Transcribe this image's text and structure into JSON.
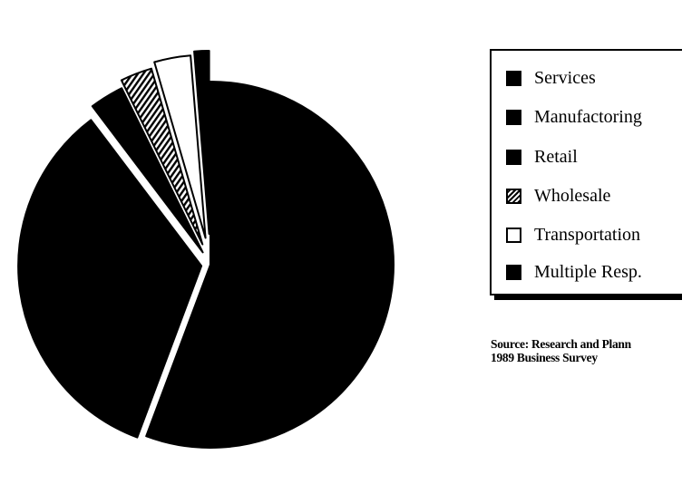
{
  "chart_data": {
    "type": "pie",
    "exploded": true,
    "slices": [
      {
        "label": "Services",
        "value": 55.7,
        "fill": "solid-black"
      },
      {
        "label": "Manufactoring",
        "value": 34.0,
        "fill": "solid-black"
      },
      {
        "label": "Retail",
        "value": 3.0,
        "fill": "solid-black"
      },
      {
        "label": "Wholesale",
        "value": 2.8,
        "fill": "hatched"
      },
      {
        "label": "Transportation",
        "value": 3.2,
        "fill": "white"
      },
      {
        "label": "Multiple Resp.",
        "value": 1.3,
        "fill": "solid-black"
      }
    ],
    "legend_position": "right"
  },
  "legend": {
    "items": [
      {
        "label": "Services",
        "swatch": "solid"
      },
      {
        "label": "Manufactoring",
        "swatch": "solid"
      },
      {
        "label": "Retail",
        "swatch": "solid"
      },
      {
        "label": "Wholesale",
        "swatch": "hatched"
      },
      {
        "label": "Transportation",
        "swatch": "open"
      },
      {
        "label": "Multiple Resp.",
        "swatch": "solid"
      }
    ]
  },
  "source": {
    "line1": "Source: Research and Plann",
    "line2": "1989 Business Survey"
  },
  "colors": {
    "ink": "#000000",
    "paper": "#ffffff"
  }
}
